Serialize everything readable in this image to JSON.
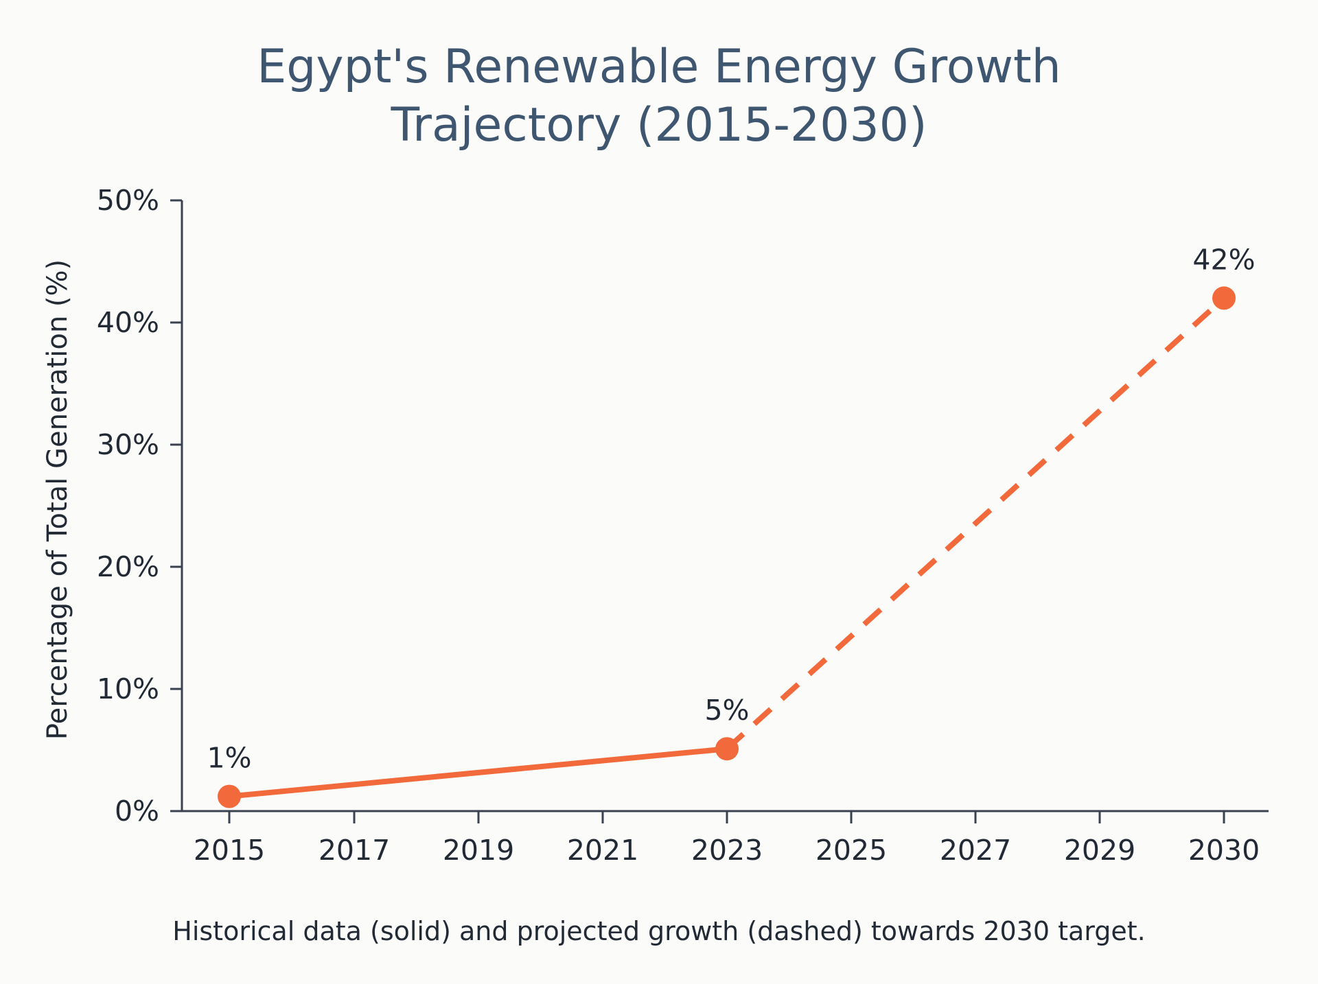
{
  "chart_data": {
    "type": "line",
    "title_lines": [
      "Egypt's Renewable Energy Growth",
      "Trajectory (2015-2030)"
    ],
    "ylabel": "Percentage of Total Generation (%)",
    "caption": "Historical data (solid) and projected growth (dashed) towards 2030 target.",
    "x_ticks": [
      "2015",
      "2017",
      "2019",
      "2021",
      "2023",
      "2025",
      "2027",
      "2029",
      "2030"
    ],
    "y_ticks": [
      "0%",
      "10%",
      "20%",
      "30%",
      "40%",
      "50%"
    ],
    "ylim": [
      0,
      50
    ],
    "series": [
      {
        "style": "solid",
        "points": [
          {
            "x": "2015",
            "y": 1.2,
            "label": "1%"
          },
          {
            "x": "2023",
            "y": 5.1,
            "label": "5%"
          }
        ]
      },
      {
        "style": "dashed",
        "points": [
          {
            "x": "2023",
            "y": 5.1
          },
          {
            "x": "2030",
            "y": 42,
            "label": "42%"
          }
        ]
      }
    ],
    "grid": false,
    "line_color": "#f26a3b"
  }
}
